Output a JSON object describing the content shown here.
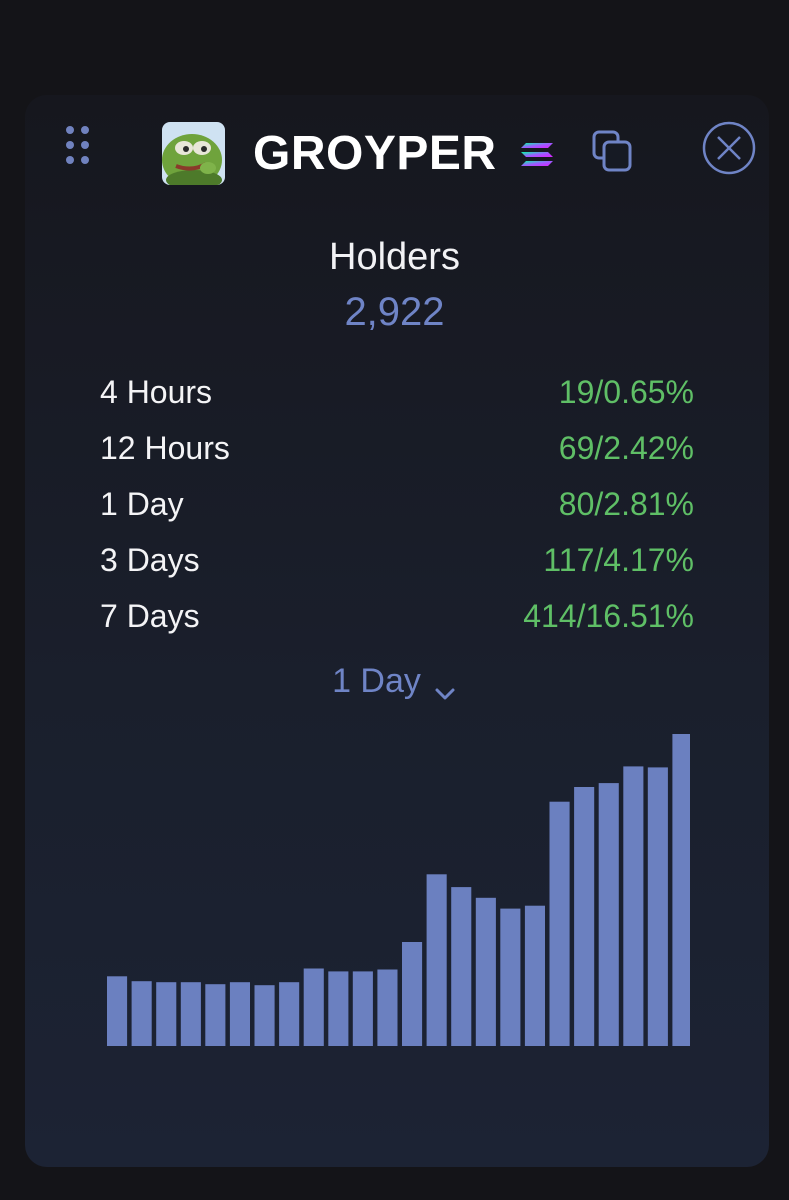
{
  "header": {
    "token_name": "GROYPER",
    "icons": {
      "drag": "drag-handle-icon",
      "avatar": "frog-avatar-icon",
      "chain": "solana-chain-icon",
      "copy": "copy-icon",
      "close": "close-icon"
    }
  },
  "holders": {
    "title": "Holders",
    "count": "2,922"
  },
  "stats": [
    {
      "label": "4 Hours",
      "value": "19/0.65%"
    },
    {
      "label": "12 Hours",
      "value": "69/2.42%"
    },
    {
      "label": "1 Day",
      "value": "80/2.81%"
    },
    {
      "label": "3 Days",
      "value": "117/4.17%"
    },
    {
      "label": "7 Days",
      "value": "414/16.51%"
    }
  ],
  "period_selector": {
    "selected": "1 Day"
  },
  "colors": {
    "accent": "#6f84c6",
    "positive": "#5fbf66",
    "bar": "#6b80c0",
    "background": "#141418",
    "card": "#1a1f2c"
  },
  "chart_data": {
    "type": "bar",
    "title": "",
    "xlabel": "",
    "ylabel": "",
    "grid": false,
    "values": [
      71,
      66,
      65,
      65,
      63,
      65,
      62,
      65,
      79,
      76,
      76,
      78,
      106,
      175,
      162,
      151,
      140,
      143,
      249,
      264,
      268,
      285,
      284,
      318
    ]
  }
}
